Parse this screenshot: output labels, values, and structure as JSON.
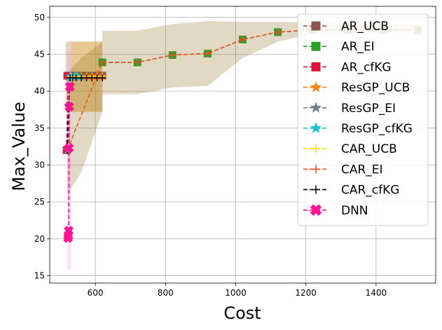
{
  "chart_data": {
    "type": "line",
    "title": "",
    "xlabel": "Cost",
    "ylabel": "Max_Value",
    "xlim": [
      470,
      1570
    ],
    "ylim": [
      14,
      51.5
    ],
    "xticks": [
      600,
      800,
      1000,
      1200,
      1400
    ],
    "yticks": [
      15,
      20,
      25,
      30,
      35,
      40,
      45,
      50
    ],
    "grid": true,
    "legend_position": "top-right",
    "bands": [
      {
        "name": "AR_EI",
        "color": "#8B6914",
        "x": [
          620,
          720,
          820,
          920,
          1020,
          1120,
          1220,
          1320,
          1420,
          1520
        ],
        "lower": [
          39.6,
          39.6,
          40.5,
          40.7,
          44.5,
          46.7,
          47.8,
          48.0,
          48.0,
          48.0
        ],
        "upper": [
          48.2,
          48.2,
          49.1,
          49.5,
          49.4,
          49.4,
          49.3,
          49.0,
          49.0,
          49.0
        ]
      },
      {
        "name": "AR_UCB",
        "color": "#8B6914",
        "x": [
          515,
          620
        ],
        "lower": [
          37.2,
          37.2
        ],
        "upper": [
          46.7,
          46.7
        ]
      },
      {
        "name": "ResGP_UCB",
        "color": "#ff9900",
        "x": [
          530,
          620
        ],
        "lower": [
          37.2,
          37.2
        ],
        "upper": [
          46.7,
          46.7
        ]
      },
      {
        "name": "CAR_EI",
        "color": "#8B6914",
        "x": [
          520,
          560,
          620
        ],
        "lower": [
          26.0,
          29.0,
          37.2
        ],
        "upper": [
          42.5,
          44.5,
          46.7
        ]
      },
      {
        "name": "DNN",
        "color": "#ee82ee",
        "x": [
          520,
          524,
          530
        ],
        "lower": [
          15.8,
          15.8,
          15.8
        ],
        "upper": [
          45.5,
          45.5,
          45.5
        ]
      }
    ],
    "series": [
      {
        "name": "AR_UCB",
        "color": "#8c564b",
        "marker": "square",
        "x": [
          520,
          535,
          550,
          565,
          580,
          595,
          610,
          620
        ],
        "y": [
          42.1,
          42.1,
          42.1,
          42.1,
          42.1,
          42.1,
          42.1,
          42.1
        ]
      },
      {
        "name": "AR_EI",
        "color": "#2ca02c",
        "marker": "square",
        "x": [
          620,
          720,
          820,
          920,
          1020,
          1120,
          1220,
          1320,
          1420,
          1520
        ],
        "y": [
          43.9,
          43.9,
          44.9,
          45.1,
          47.0,
          48.0,
          48.3,
          48.3,
          48.3,
          48.3
        ]
      },
      {
        "name": "AR_cfKG",
        "color": "#dc143c",
        "marker": "square",
        "x": [
          518,
          522,
          526
        ],
        "y": [
          32.0,
          42.1,
          42.1
        ]
      },
      {
        "name": "ResGP_UCB",
        "color": "#ff7f0e",
        "marker": "star",
        "x": [
          530,
          545,
          560,
          575,
          590,
          605,
          620
        ],
        "y": [
          42.0,
          42.0,
          42.0,
          42.0,
          42.0,
          42.0,
          42.0
        ]
      },
      {
        "name": "ResGP_EI",
        "color": "#708090",
        "marker": "star",
        "x": [
          530,
          545,
          560
        ],
        "y": [
          42.0,
          42.0,
          42.0
        ]
      },
      {
        "name": "ResGP_cfKG",
        "color": "#17becf",
        "marker": "star",
        "x": [
          520,
          524,
          528,
          532,
          540,
          550
        ],
        "y": [
          32.0,
          38.0,
          42.0,
          42.0,
          42.0,
          42.0
        ]
      },
      {
        "name": "CAR_UCB",
        "color": "#ffd700",
        "marker": "plus",
        "x": [
          530,
          545,
          560,
          575,
          590,
          605,
          620
        ],
        "y": [
          42.0,
          42.0,
          42.0,
          42.0,
          42.0,
          42.0,
          42.0
        ]
      },
      {
        "name": "CAR_EI",
        "color": "#e8501e",
        "marker": "plus",
        "x": [
          520,
          620,
          720,
          820,
          920,
          1020,
          1120,
          1220,
          1320,
          1420,
          1520
        ],
        "y": [
          32.0,
          43.9,
          43.9,
          44.9,
          45.1,
          47.0,
          48.0,
          48.3,
          48.3,
          48.3,
          48.3
        ]
      },
      {
        "name": "CAR_cfKG",
        "color": "#000000",
        "marker": "plus",
        "x": [
          520,
          524,
          528,
          535,
          545,
          560,
          575,
          590,
          605,
          620
        ],
        "y": [
          32.0,
          38.0,
          41.8,
          41.8,
          41.8,
          41.8,
          41.8,
          41.8,
          41.8,
          41.8
        ]
      },
      {
        "name": "DNN",
        "color": "#ff1493",
        "marker": "x",
        "x": [
          522,
          523,
          524,
          525,
          526,
          527,
          528
        ],
        "y": [
          20.1,
          20.4,
          21.1,
          32.3,
          37.9,
          40.6,
          40.6
        ]
      }
    ]
  }
}
